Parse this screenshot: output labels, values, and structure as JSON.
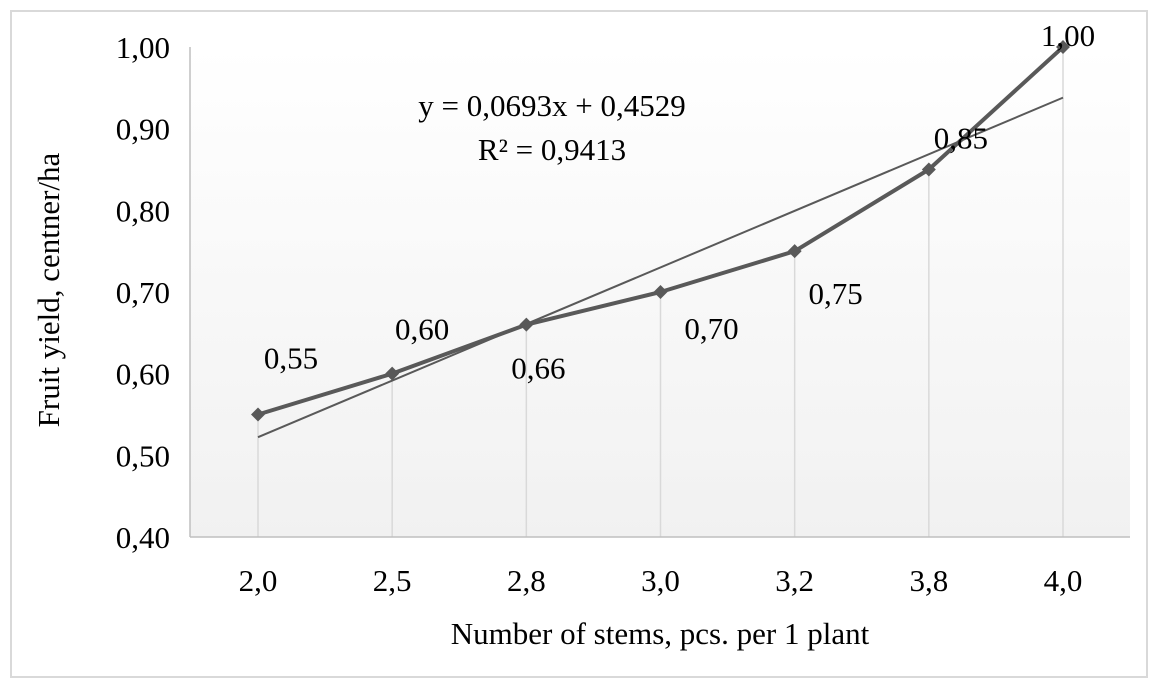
{
  "chart_data": {
    "type": "line",
    "title": "",
    "xlabel": "Number of stems, pcs. per 1 plant",
    "ylabel": "Fruit yield, centner/ha",
    "categories": [
      "2,0",
      "2,5",
      "2,8",
      "3,0",
      "3,2",
      "3,8",
      "4,0"
    ],
    "series": [
      {
        "values": [
          0.55,
          0.6,
          0.66,
          0.7,
          0.75,
          0.85,
          1.0
        ],
        "labels": [
          "0,55",
          "0,60",
          "0,66",
          "0,70",
          "0,75",
          "0,85",
          "1,00"
        ],
        "color": "#595959",
        "marker": "diamond"
      }
    ],
    "trendline": {
      "type": "linear",
      "slope": 0.0693,
      "intercept": 0.4529,
      "r2": 0.9413,
      "equation": "y = 0,0693x + 0,4529",
      "r2_label": "R² = 0,9413",
      "color": "#595959"
    },
    "ylim": [
      0.4,
      1.0
    ],
    "yticks": [
      1.0,
      0.9,
      0.8,
      0.7,
      0.6,
      0.5,
      0.4
    ],
    "ytick_labels": [
      "1,00",
      "0,90",
      "0,80",
      "0,70",
      "0,60",
      "0,50",
      "0,40"
    ],
    "drop_lines": true,
    "grid": false,
    "legend": "none"
  }
}
